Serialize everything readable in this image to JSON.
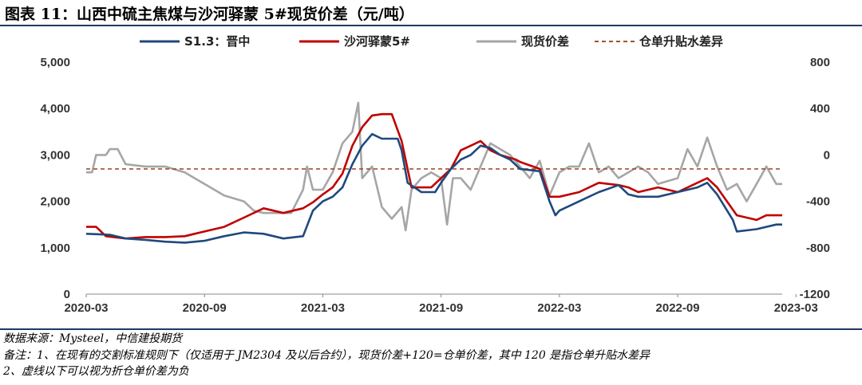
{
  "header": {
    "title": "图表 11：山西中硫主焦煤与沙河驿蒙 5#现货价差（元/吨）"
  },
  "footer": {
    "source": "数据来源：Mysteel，中信建投期货",
    "note1": "备注：1、在现有的交割标准规则下（仅适用于 JM2304 及以后合约），现货价差+120=仓单价差，其中 120 是指仓单升贴水差异",
    "note2": "2、虚线以下可以视为折仓单价差为负"
  },
  "chart_data": {
    "type": "line",
    "title": "",
    "x_ticks": [
      "2020-03",
      "2020-09",
      "2021-03",
      "2021-09",
      "2022-03",
      "2022-09",
      "2023-03"
    ],
    "x_range": [
      "2020-03",
      "2023-05"
    ],
    "y_left": {
      "min": 0,
      "max": 5000,
      "ticks": [
        "0",
        "1,000",
        "2,000",
        "3,000",
        "4,000",
        "5,000"
      ]
    },
    "y_right": {
      "min": -1200,
      "max": 800,
      "ticks": [
        "-1200",
        "-800",
        "-400",
        "0",
        "400",
        "800"
      ]
    },
    "colors": {
      "s13": "#1f497d",
      "shahe": "#c00000",
      "spread": "#a6a6a6",
      "dashed": "#a0522d"
    },
    "series": [
      {
        "name": "S1.3：晋中",
        "axis": "left",
        "style": "solid",
        "points": [
          [
            0,
            1300
          ],
          [
            1.2,
            1280
          ],
          [
            2,
            1200
          ],
          [
            3,
            1170
          ],
          [
            4,
            1130
          ],
          [
            5,
            1110
          ],
          [
            6,
            1150
          ],
          [
            7,
            1250
          ],
          [
            8,
            1330
          ],
          [
            9,
            1300
          ],
          [
            10,
            1200
          ],
          [
            11,
            1250
          ],
          [
            11.5,
            1800
          ],
          [
            12,
            2000
          ],
          [
            12.5,
            2100
          ],
          [
            13,
            2300
          ],
          [
            13.5,
            2800
          ],
          [
            14,
            3200
          ],
          [
            14.5,
            3450
          ],
          [
            15,
            3350
          ],
          [
            15.8,
            3350
          ],
          [
            16,
            3100
          ],
          [
            16.3,
            2400
          ],
          [
            17,
            2200
          ],
          [
            17.7,
            2200
          ],
          [
            18,
            2400
          ],
          [
            18.5,
            2700
          ],
          [
            19,
            2900
          ],
          [
            19.5,
            3000
          ],
          [
            20,
            3200
          ],
          [
            20.5,
            3150
          ],
          [
            21,
            3000
          ],
          [
            21.5,
            2900
          ],
          [
            22,
            2700
          ],
          [
            23,
            2650
          ],
          [
            23.5,
            2000
          ],
          [
            23.8,
            1700
          ],
          [
            24,
            1800
          ],
          [
            25,
            2000
          ],
          [
            26,
            2200
          ],
          [
            27,
            2350
          ],
          [
            27.5,
            2150
          ],
          [
            28,
            2100
          ],
          [
            29,
            2100
          ],
          [
            30,
            2200
          ],
          [
            31,
            2300
          ],
          [
            31.5,
            2400
          ],
          [
            32,
            2150
          ],
          [
            32.8,
            1600
          ],
          [
            33,
            1350
          ],
          [
            34,
            1400
          ],
          [
            35,
            1500
          ],
          [
            35.3,
            1500
          ]
        ]
      },
      {
        "name": "沙河驿蒙5#",
        "axis": "left",
        "style": "solid",
        "points": [
          [
            0,
            1450
          ],
          [
            0.5,
            1450
          ],
          [
            1,
            1250
          ],
          [
            2,
            1200
          ],
          [
            3,
            1230
          ],
          [
            4,
            1230
          ],
          [
            5,
            1250
          ],
          [
            5.5,
            1300
          ],
          [
            6,
            1350
          ],
          [
            7,
            1450
          ],
          [
            8,
            1650
          ],
          [
            9,
            1850
          ],
          [
            10,
            1750
          ],
          [
            10.5,
            1800
          ],
          [
            11,
            1850
          ],
          [
            11.5,
            1980
          ],
          [
            12,
            2150
          ],
          [
            12.5,
            2300
          ],
          [
            13,
            2600
          ],
          [
            13.5,
            3200
          ],
          [
            14,
            3600
          ],
          [
            14.5,
            3850
          ],
          [
            15,
            3880
          ],
          [
            15.5,
            3880
          ],
          [
            16,
            3300
          ],
          [
            16.5,
            2300
          ],
          [
            17,
            2300
          ],
          [
            17.5,
            2300
          ],
          [
            18,
            2500
          ],
          [
            18.5,
            2700
          ],
          [
            19,
            3100
          ],
          [
            19.5,
            3200
          ],
          [
            20,
            3300
          ],
          [
            20.5,
            3100
          ],
          [
            21,
            3000
          ],
          [
            21.8,
            2900
          ],
          [
            22,
            2850
          ],
          [
            23,
            2700
          ],
          [
            23.5,
            2100
          ],
          [
            24,
            2100
          ],
          [
            25,
            2200
          ],
          [
            26,
            2400
          ],
          [
            27,
            2350
          ],
          [
            27.5,
            2300
          ],
          [
            28,
            2200
          ],
          [
            29,
            2300
          ],
          [
            30,
            2200
          ],
          [
            31,
            2400
          ],
          [
            31.5,
            2500
          ],
          [
            32,
            2300
          ],
          [
            32.5,
            2000
          ],
          [
            33,
            1700
          ],
          [
            34,
            1600
          ],
          [
            34.5,
            1700
          ],
          [
            35.3,
            1700
          ]
        ]
      },
      {
        "name": "现货价差",
        "axis": "right",
        "style": "solid",
        "points": [
          [
            0,
            -150
          ],
          [
            0.3,
            -150
          ],
          [
            0.5,
            0
          ],
          [
            1,
            0
          ],
          [
            1.2,
            50
          ],
          [
            1.6,
            50
          ],
          [
            2,
            -80
          ],
          [
            3,
            -100
          ],
          [
            4,
            -100
          ],
          [
            5,
            -150
          ],
          [
            6,
            -250
          ],
          [
            7,
            -350
          ],
          [
            8,
            -400
          ],
          [
            8.5,
            -480
          ],
          [
            9,
            -500
          ],
          [
            10,
            -500
          ],
          [
            10.4,
            -500
          ],
          [
            11,
            -300
          ],
          [
            11.2,
            -100
          ],
          [
            11.5,
            -300
          ],
          [
            12,
            -300
          ],
          [
            12.5,
            -150
          ],
          [
            13,
            100
          ],
          [
            13.5,
            200
          ],
          [
            13.8,
            450
          ],
          [
            14,
            -200
          ],
          [
            14.5,
            -100
          ],
          [
            15,
            -450
          ],
          [
            15.5,
            -550
          ],
          [
            16,
            -450
          ],
          [
            16.2,
            -650
          ],
          [
            16.5,
            -300
          ],
          [
            17,
            -200
          ],
          [
            17.5,
            -150
          ],
          [
            18,
            -200
          ],
          [
            18.3,
            -600
          ],
          [
            18.6,
            -200
          ],
          [
            19,
            -200
          ],
          [
            19.5,
            -300
          ],
          [
            20,
            -100
          ],
          [
            20.5,
            100
          ],
          [
            21,
            50
          ],
          [
            21.5,
            0
          ],
          [
            22,
            -100
          ],
          [
            22.5,
            -200
          ],
          [
            23,
            -50
          ],
          [
            23.5,
            -350
          ],
          [
            24,
            -150
          ],
          [
            24.5,
            -100
          ],
          [
            25,
            -100
          ],
          [
            25.5,
            100
          ],
          [
            26,
            -150
          ],
          [
            26.5,
            -100
          ],
          [
            27,
            -200
          ],
          [
            28,
            -100
          ],
          [
            28.5,
            -150
          ],
          [
            29,
            -250
          ],
          [
            30,
            -200
          ],
          [
            30.5,
            50
          ],
          [
            31,
            -100
          ],
          [
            31.5,
            150
          ],
          [
            32,
            -100
          ],
          [
            32.5,
            -300
          ],
          [
            33,
            -250
          ],
          [
            33.5,
            -400
          ],
          [
            34,
            -250
          ],
          [
            34.5,
            -100
          ],
          [
            35,
            -250
          ],
          [
            35.3,
            -250
          ]
        ]
      },
      {
        "name": "仓单升贴水差异",
        "axis": "right",
        "style": "dashed",
        "points": [
          [
            0,
            -120
          ],
          [
            35.3,
            -120
          ]
        ]
      }
    ]
  }
}
